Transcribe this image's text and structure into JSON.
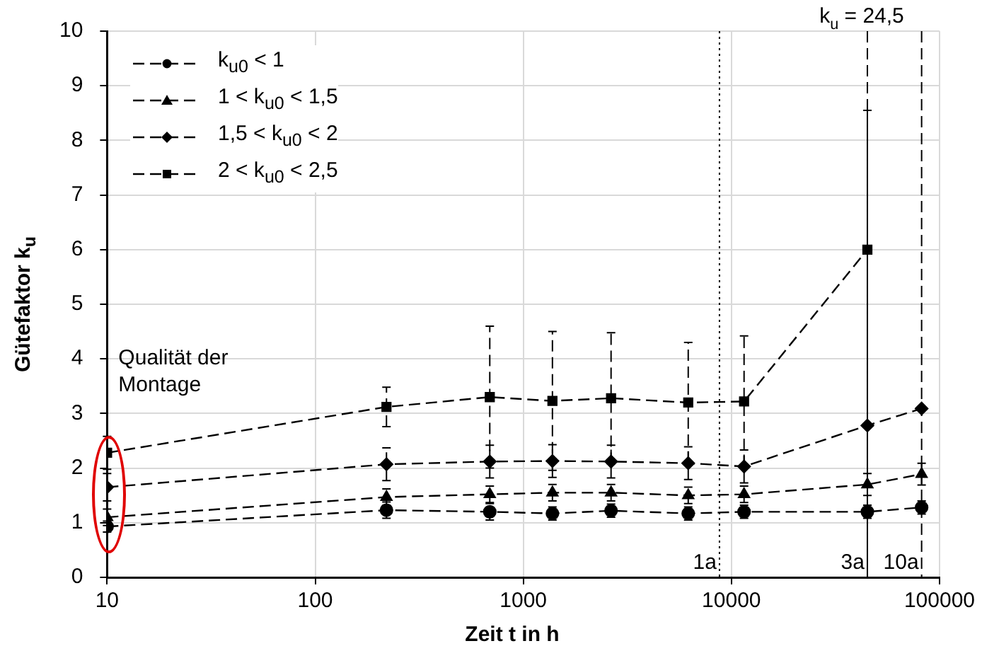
{
  "chart_data": {
    "type": "line",
    "xlabel": "Zeit t in h",
    "ylabel": "Gütefaktor k$_{u}$",
    "log": "x",
    "xlim": [
      10,
      100000
    ],
    "xticks": [
      10,
      100,
      1000,
      10000,
      100000
    ],
    "ylim": [
      0,
      10
    ],
    "yticks": [
      0,
      1,
      2,
      3,
      4,
      5,
      6,
      7,
      8,
      9,
      10
    ],
    "grid": true,
    "legend": "top left",
    "line_style": "dashed",
    "series": [
      {
        "name": "k$_{u0}$ < 1",
        "color": "#000000",
        "marker": "circle",
        "x": [
          10,
          220,
          690,
          1380,
          2640,
          6200,
          11500,
          45000,
          82000
        ],
        "values": [
          0.93,
          1.23,
          1.2,
          1.17,
          1.22,
          1.17,
          1.2,
          1.2,
          1.28
        ],
        "errors": [
          0.1,
          0.15,
          0.15,
          0.12,
          0.12,
          0.12,
          0.12,
          0.12,
          0.12
        ]
      },
      {
        "name": "1 < k$_{u0}$ < 1,5",
        "color": "#000000",
        "marker": "triangle",
        "x": [
          10,
          220,
          690,
          1380,
          2640,
          6200,
          11500,
          45000,
          82000
        ],
        "values": [
          1.1,
          1.47,
          1.52,
          1.55,
          1.55,
          1.5,
          1.52,
          1.7,
          1.89
        ],
        "errors": [
          0.15,
          0.15,
          0.15,
          0.15,
          0.15,
          0.15,
          0.15,
          0.2,
          0.2
        ]
      },
      {
        "name": "1,5 < k$_{u0}$ < 2",
        "color": "#000000",
        "marker": "diamond",
        "x": [
          10,
          220,
          690,
          1380,
          2640,
          6200,
          11500,
          45000,
          82000
        ],
        "values": [
          1.65,
          2.07,
          2.12,
          2.13,
          2.12,
          2.09,
          2.03,
          2.78,
          3.09
        ],
        "errors": [
          0.25,
          0.3,
          0.3,
          0.3,
          0.3,
          0.3,
          0.3,
          [
            0,
            8.55
          ],
          null
        ]
      },
      {
        "name": "2 < k$_{u0}$ < 2,5",
        "color": "#000000",
        "marker": "square",
        "x": [
          10,
          220,
          690,
          1380,
          2640,
          6200,
          11500,
          45000
        ],
        "values": [
          2.28,
          3.12,
          3.3,
          3.23,
          3.28,
          3.2,
          3.22,
          6.0
        ],
        "errors": [
          0.3,
          0.36,
          1.3,
          1.27,
          1.2,
          1.1,
          1.2,
          null
        ]
      }
    ],
    "ref_lines": [
      {
        "axis": "x",
        "value": 8760,
        "label": "1a",
        "line_style": "dotted"
      },
      {
        "axis": "x",
        "value": 45000,
        "label": "3a",
        "line_style": "dashed"
      },
      {
        "axis": "x",
        "value": 82000,
        "label": "10a",
        "line_style": "dashed"
      }
    ],
    "annotations": [
      "Qualität der Montage",
      "k$_{u}$ = 24,5"
    ]
  }
}
